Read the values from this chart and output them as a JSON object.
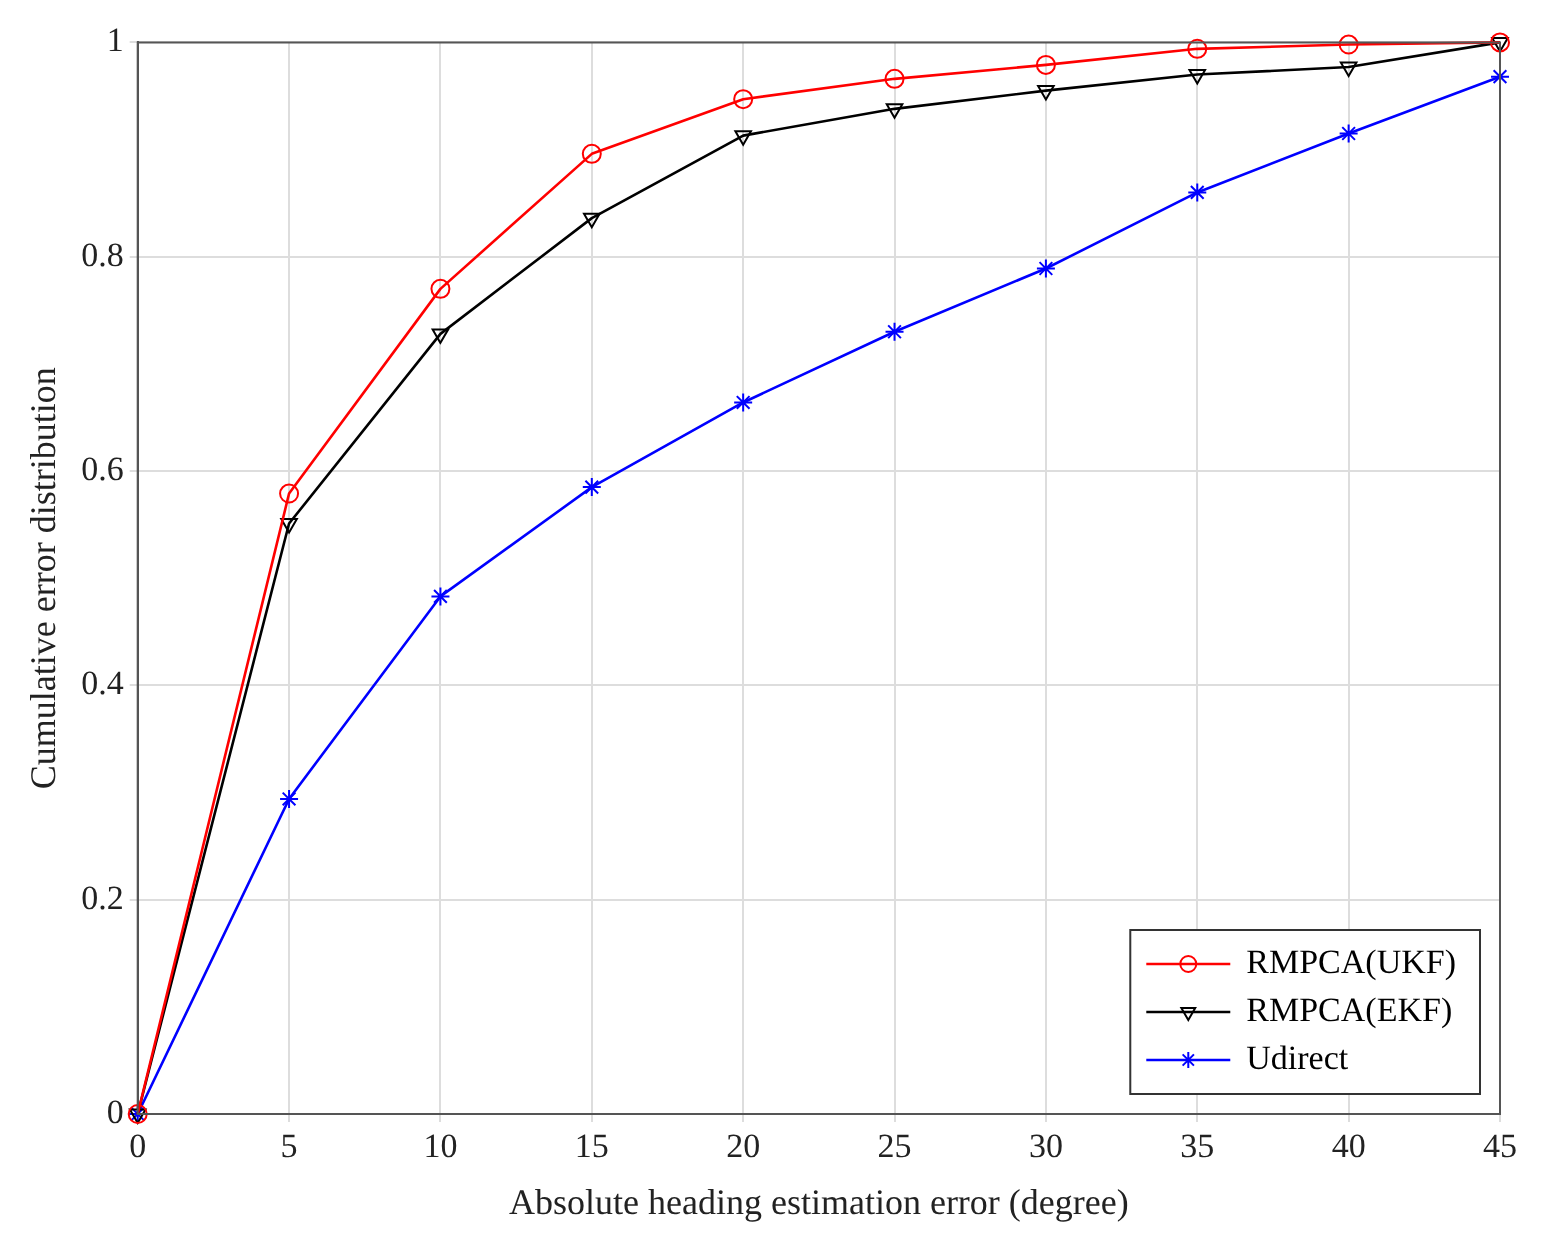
{
  "chart_data": {
    "type": "line",
    "xlabel": "Absolute heading estimation error (degree)",
    "ylabel": "Cumulative error distribution",
    "x": [
      0,
      5,
      10,
      15,
      20,
      25,
      30,
      35,
      40,
      45
    ],
    "series": [
      {
        "name": "RMPCA(UKF)",
        "color": "#ff0000",
        "marker": "circle",
        "values": [
          0,
          0.579,
          0.77,
          0.896,
          0.947,
          0.966,
          0.979,
          0.994,
          0.998,
          1.0
        ]
      },
      {
        "name": "RMPCA(EKF)",
        "color": "#000000",
        "marker": "triangle",
        "values": [
          0,
          0.551,
          0.728,
          0.836,
          0.913,
          0.938,
          0.955,
          0.97,
          0.977,
          1.0
        ]
      },
      {
        "name": "Udirect",
        "color": "#0000ff",
        "marker": "cross",
        "values": [
          0,
          0.294,
          0.483,
          0.585,
          0.664,
          0.73,
          0.789,
          0.86,
          0.915,
          0.968
        ]
      }
    ],
    "xlim": [
      0,
      45
    ],
    "xticks": [
      0,
      5,
      10,
      15,
      20,
      25,
      30,
      35,
      40,
      45
    ],
    "ylim": [
      0,
      1
    ],
    "yticks": [
      0,
      0.2,
      0.4,
      0.6,
      0.8,
      1
    ],
    "grid": true,
    "legend": "bottom right",
    "line_style": "solid"
  }
}
